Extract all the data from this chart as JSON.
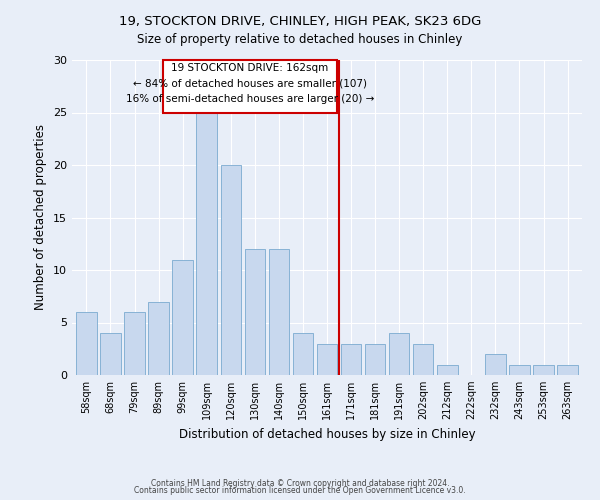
{
  "title_line1": "19, STOCKTON DRIVE, CHINLEY, HIGH PEAK, SK23 6DG",
  "title_line2": "Size of property relative to detached houses in Chinley",
  "xlabel": "Distribution of detached houses by size in Chinley",
  "ylabel": "Number of detached properties",
  "categories": [
    "58sqm",
    "68sqm",
    "79sqm",
    "89sqm",
    "99sqm",
    "109sqm",
    "120sqm",
    "130sqm",
    "140sqm",
    "150sqm",
    "161sqm",
    "171sqm",
    "181sqm",
    "191sqm",
    "202sqm",
    "212sqm",
    "222sqm",
    "232sqm",
    "243sqm",
    "253sqm",
    "263sqm"
  ],
  "values": [
    6,
    4,
    6,
    7,
    11,
    25,
    20,
    12,
    12,
    4,
    3,
    3,
    3,
    4,
    3,
    1,
    0,
    2,
    1,
    1,
    1
  ],
  "bar_color": "#c8d8ee",
  "bar_edge_color": "#7aaad0",
  "property_line_x": 10.5,
  "property_line_label": "19 STOCKTON DRIVE: 162sqm",
  "annotation_line2": "← 84% of detached houses are smaller (107)",
  "annotation_line3": "16% of semi-detached houses are larger (20) →",
  "ylim": [
    0,
    30
  ],
  "yticks": [
    0,
    5,
    10,
    15,
    20,
    25,
    30
  ],
  "red_color": "#cc0000",
  "footer_line1": "Contains HM Land Registry data © Crown copyright and database right 2024.",
  "footer_line2": "Contains public sector information licensed under the Open Government Licence v3.0.",
  "background_color": "#e8eef8"
}
